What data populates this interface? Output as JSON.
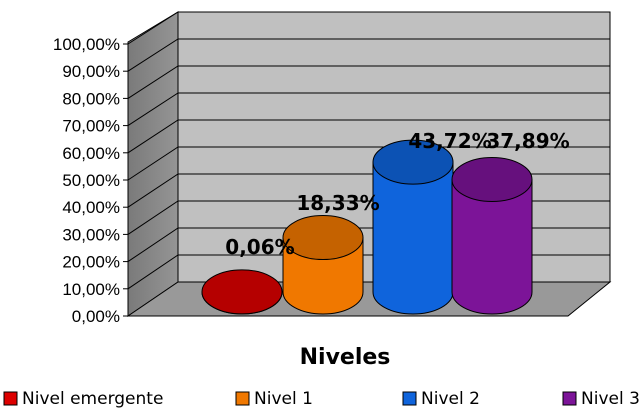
{
  "chart_data": {
    "type": "bar",
    "style": "3d-cylinder",
    "categories": [
      "Nivel emergente",
      "Nivel 1",
      "Nivel 2",
      "Nivel 3"
    ],
    "values": [
      0.06,
      18.33,
      43.72,
      37.89
    ],
    "data_labels": [
      "0,06%",
      "18,33%",
      "43,72%",
      "37,89%"
    ],
    "series_colors": [
      "#dd0000",
      "#f07800",
      "#0f64dc",
      "#7c1498"
    ],
    "xlabel": "Niveles",
    "ylabel": "",
    "ylim": [
      0,
      100
    ],
    "y_ticks": [
      "0,00%",
      "10,00%",
      "20,00%",
      "30,00%",
      "40,00%",
      "50,00%",
      "60,00%",
      "70,00%",
      "80,00%",
      "90,00%",
      "100,00%"
    ],
    "grid": true,
    "legend": {
      "position": "bottom",
      "entries": [
        "Nivel emergente",
        "Nivel 1",
        "Nivel 2",
        "Nivel 3"
      ]
    }
  }
}
